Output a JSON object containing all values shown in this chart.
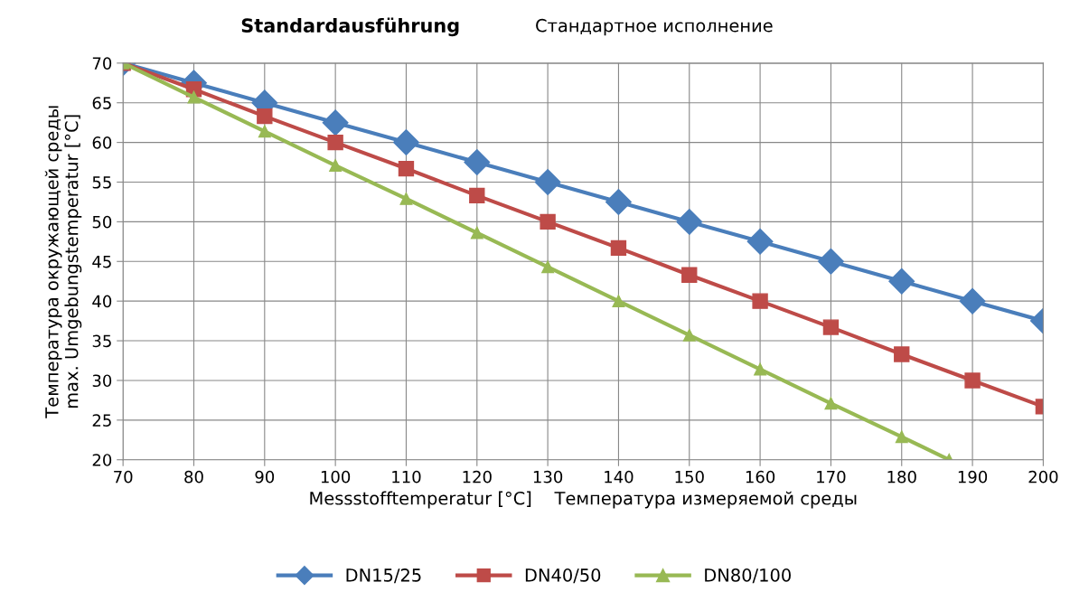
{
  "chart_data": {
    "type": "line",
    "title": "Standardausführung",
    "subtitle": "Стандартное исполнение",
    "xlabel": "Messstofftemperatur [°C]    Температура измеряемой среды",
    "ylabel": "Температура окружающей среды\nmax. Umgebungstemperatur [°C]",
    "x": [
      70,
      80,
      90,
      100,
      110,
      120,
      130,
      140,
      150,
      160,
      170,
      180,
      190,
      200
    ],
    "series": [
      {
        "name": "DN15/25",
        "color": "#4a7ebb",
        "marker": "diamond",
        "values": [
          70,
          67.5,
          65,
          62.5,
          60,
          57.5,
          55,
          52.5,
          50,
          47.5,
          45,
          42.5,
          40,
          37.5
        ]
      },
      {
        "name": "DN40/50",
        "color": "#be4b48",
        "marker": "square",
        "values": [
          70,
          66.7,
          63.3,
          60,
          56.7,
          53.3,
          50,
          46.7,
          43.3,
          40,
          36.7,
          33.3,
          30,
          26.7
        ]
      },
      {
        "name": "DN80/100",
        "color": "#98b954",
        "marker": "triangle",
        "x": [
          70,
          80,
          90,
          100,
          110,
          120,
          130,
          140,
          150,
          160,
          170,
          180,
          186.7
        ],
        "values": [
          70,
          65.7,
          61.4,
          57.1,
          52.9,
          48.6,
          44.3,
          40,
          35.7,
          31.4,
          27.1,
          22.9,
          20
        ]
      }
    ],
    "xlim": [
      70,
      200
    ],
    "xticks": [
      70,
      80,
      90,
      100,
      110,
      120,
      130,
      140,
      150,
      160,
      170,
      180,
      190,
      200
    ],
    "ylim": [
      20,
      70
    ],
    "yticks": [
      20,
      25,
      30,
      35,
      40,
      45,
      50,
      55,
      60,
      65,
      70
    ],
    "grid": true,
    "legend": "bottom",
    "line_style": "solid"
  }
}
